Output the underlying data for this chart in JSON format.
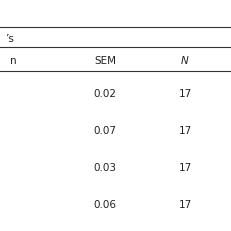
{
  "title_partial": "’s",
  "header_col1": "n",
  "header_col2": "SEM",
  "header_col3": "N",
  "rows": [
    {
      "sem": "0.02",
      "n": "17"
    },
    {
      "sem": "0.07",
      "n": "17"
    },
    {
      "sem": "0.03",
      "n": "17"
    },
    {
      "sem": "0.06",
      "n": "17"
    }
  ],
  "bg_color": "#ffffff",
  "line_color": "#333333",
  "text_color": "#222222",
  "font_size": 7.5
}
